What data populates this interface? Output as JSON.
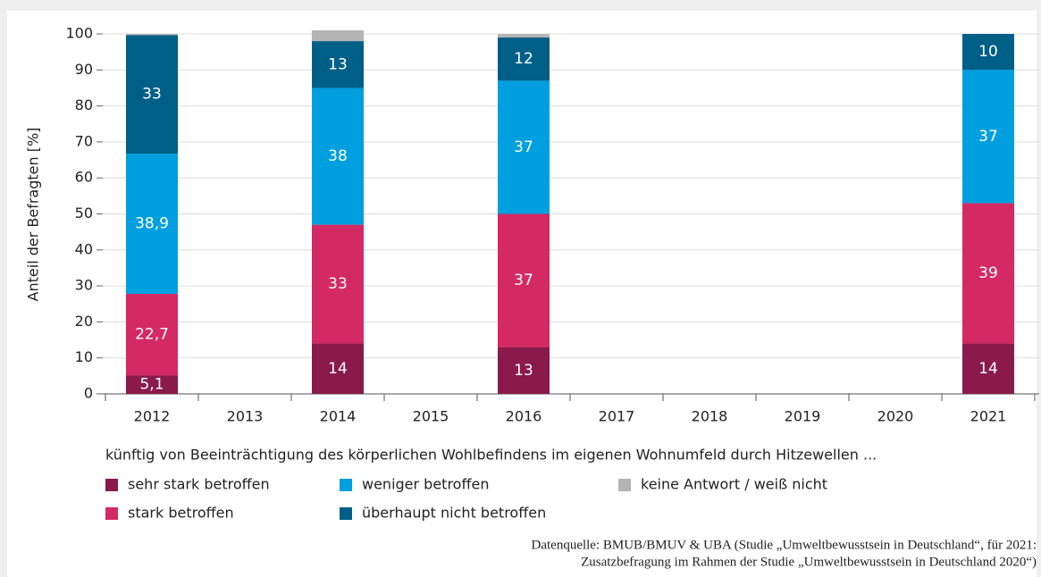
{
  "chart_data": {
    "type": "stacked_bar",
    "y_label": "Anteil der Befragten [%]",
    "legend_title": "künftig von Beeinträchtigung des körperlichen Wohlbefindens im eigenen Wohnumfeld durch Hitzewellen ...",
    "categories": [
      "2012",
      "2013",
      "2014",
      "2015",
      "2016",
      "2017",
      "2018",
      "2019",
      "2020",
      "2021"
    ],
    "series": [
      {
        "name": "sehr stark betroffen",
        "color": "#8a1a4b",
        "values": [
          5.1,
          null,
          14,
          null,
          13,
          null,
          null,
          null,
          null,
          14
        ],
        "value_labels": [
          "5,1",
          null,
          "14",
          null,
          "13",
          null,
          null,
          null,
          null,
          "14"
        ]
      },
      {
        "name": "stark betroffen",
        "color": "#d42a64",
        "values": [
          22.7,
          null,
          33,
          null,
          37,
          null,
          null,
          null,
          null,
          39
        ],
        "value_labels": [
          "22,7",
          null,
          "33",
          null,
          "37",
          null,
          null,
          null,
          null,
          "39"
        ]
      },
      {
        "name": "weniger betroffen",
        "color": "#009fe0",
        "values": [
          38.9,
          null,
          38,
          null,
          37,
          null,
          null,
          null,
          null,
          37
        ],
        "value_labels": [
          "38,9",
          null,
          "38",
          null,
          "37",
          null,
          null,
          null,
          null,
          "37"
        ]
      },
      {
        "name": "überhaupt nicht betroffen",
        "color": "#005f87",
        "values": [
          33,
          null,
          13,
          null,
          12,
          null,
          null,
          null,
          null,
          10
        ],
        "value_labels": [
          "33",
          null,
          "13",
          null,
          "12",
          null,
          null,
          null,
          null,
          "10"
        ]
      },
      {
        "name": "keine Antwort / weiß nicht",
        "color": "#b4b4b4",
        "values": [
          0.3,
          null,
          3,
          null,
          1,
          null,
          null,
          null,
          null,
          0
        ]
      }
    ],
    "ylim": [
      0,
      100
    ],
    "yticks": [
      0,
      10,
      20,
      30,
      40,
      50,
      60,
      70,
      80,
      90,
      100
    ],
    "grid": true,
    "source": [
      "Datenquelle: BMUB/BMUV & UBA (Studie „Umweltbewusstsein in Deutschland“, für 2021:",
      "Zusatzbefragung im Rahmen der Studie „Umweltbewusstsein in Deutschland 2020“)"
    ]
  }
}
